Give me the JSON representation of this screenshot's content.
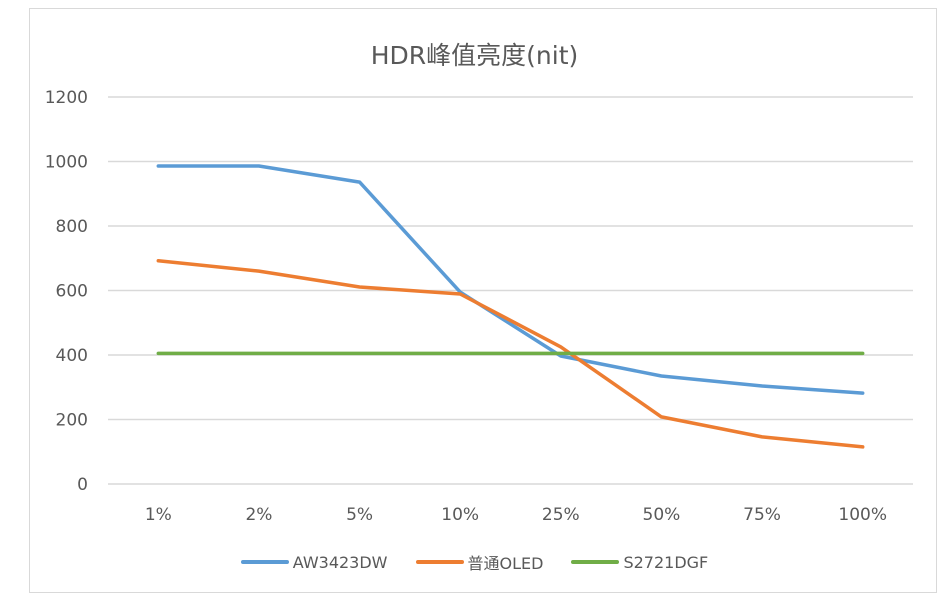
{
  "chart_data": {
    "type": "line",
    "title": "HDR峰值亮度(nit)",
    "xlabel": "",
    "ylabel": "",
    "categories": [
      "1%",
      "2%",
      "5%",
      "10%",
      "25%",
      "50%",
      "75%",
      "100%"
    ],
    "series": [
      {
        "name": "AW3423DW",
        "color": "#5b9bd5",
        "values": [
          986,
          986,
          936,
          595,
          397,
          335,
          304,
          282
        ]
      },
      {
        "name": "普通OLED",
        "color": "#ed7d31",
        "values": [
          692,
          660,
          611,
          589,
          425,
          208,
          146,
          115
        ]
      },
      {
        "name": "S2721DGF",
        "color": "#70ad47",
        "values": [
          405,
          405,
          405,
          405,
          405,
          405,
          405,
          405
        ]
      }
    ],
    "ylim": [
      0,
      1200
    ],
    "yticks": [
      0,
      200,
      400,
      600,
      800,
      1000,
      1200
    ],
    "grid": true,
    "legend_position": "bottom"
  },
  "title": "HDR峰值亮度(nit)",
  "legend": [
    {
      "label": "AW3423DW",
      "color": "#5b9bd5"
    },
    {
      "label": "普通OLED",
      "color": "#ed7d31"
    },
    {
      "label": "S2721DGF",
      "color": "#70ad47"
    }
  ]
}
